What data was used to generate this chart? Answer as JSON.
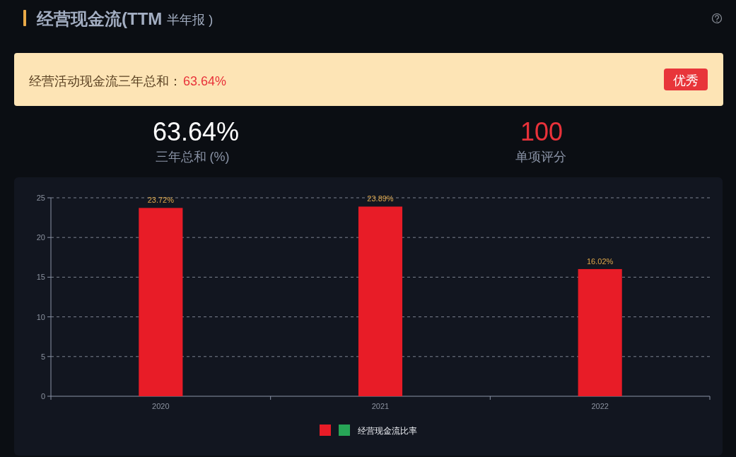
{
  "chart_data": {
    "type": "bar",
    "title": "经营现金流(TTM",
    "subtitle": "半年报 )",
    "annotations": [
      "经营活动现金流三年总和：",
      "63.64%",
      "优秀",
      "63.64%",
      "三年总和 (%)",
      "100",
      "单项评分"
    ],
    "categories": [
      "2020",
      "2021",
      "2022"
    ],
    "stacked": true,
    "series": [
      {
        "color": "#e81c27",
        "values": [
          23.72,
          23.89,
          16.02
        ],
        "value_labels": [
          "23.72%",
          "23.89%",
          "16.02%"
        ]
      },
      {
        "name": "经营现金流比率",
        "color": "#27a556",
        "values": [
          null,
          null,
          null
        ]
      }
    ],
    "ylim": [
      0,
      25
    ],
    "yticks": [
      0,
      5,
      10,
      15,
      20,
      25
    ],
    "grid": "y",
    "legend": "bottom"
  }
}
